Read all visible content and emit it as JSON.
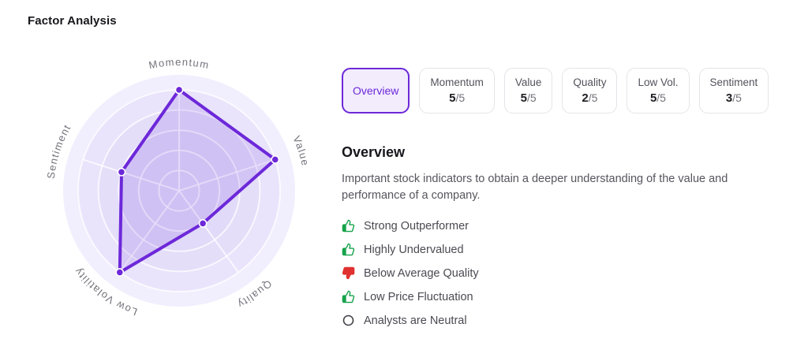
{
  "page": {
    "title": "Factor Analysis"
  },
  "tabs": [
    {
      "id": "overview",
      "label": "Overview",
      "selected": true
    },
    {
      "id": "momentum",
      "label": "Momentum",
      "score": "5",
      "max": "5"
    },
    {
      "id": "value",
      "label": "Value",
      "score": "5",
      "max": "5"
    },
    {
      "id": "quality",
      "label": "Quality",
      "score": "2",
      "max": "5"
    },
    {
      "id": "low-vol",
      "label": "Low Vol.",
      "score": "5",
      "max": "5"
    },
    {
      "id": "sentiment",
      "label": "Sentiment",
      "score": "3",
      "max": "5"
    }
  ],
  "overview": {
    "heading": "Overview",
    "description_lines": [
      "Important stock indicators to obtain a deeper understanding of the value and",
      "performance of a company."
    ],
    "items": [
      {
        "icon": "thumbs-up-icon",
        "color": "#16a34a",
        "label": "Strong Outperformer"
      },
      {
        "icon": "thumbs-up-icon",
        "color": "#16a34a",
        "label": "Highly Undervalued"
      },
      {
        "icon": "thumbs-down-icon",
        "color": "#e03131",
        "label": "Below Average Quality"
      },
      {
        "icon": "thumbs-up-icon",
        "color": "#16a34a",
        "label": "Low Price Fluctuation"
      },
      {
        "icon": "circle-icon",
        "color": "#3f3f46",
        "label": "Analysts are Neutral"
      }
    ]
  },
  "theme": {
    "accent": "#6d28d9",
    "accent_bg": "#f2ecfd",
    "tab_border": "#e5e5ea"
  },
  "chart_data": {
    "type": "radar",
    "axes": [
      "Momentum",
      "Value",
      "Quality",
      "Low Volatility",
      "Sentiment"
    ],
    "values": [
      5,
      5,
      2,
      5,
      3
    ],
    "max": 5,
    "rings": 5,
    "legend": "none",
    "colors": {
      "stroke": "#6d28d9",
      "fill": "rgba(109,40,217,0.14)",
      "dot_fill": "#6d28d9",
      "dot_ring": "#ffffff",
      "label": "#72727c",
      "band_inner": "#e1daf8",
      "band_2": "#e4def9",
      "band_3": "#e9e4fb",
      "band_outer": "#f1eefd",
      "grid_line": "rgba(255,255,255,0.75)"
    }
  }
}
